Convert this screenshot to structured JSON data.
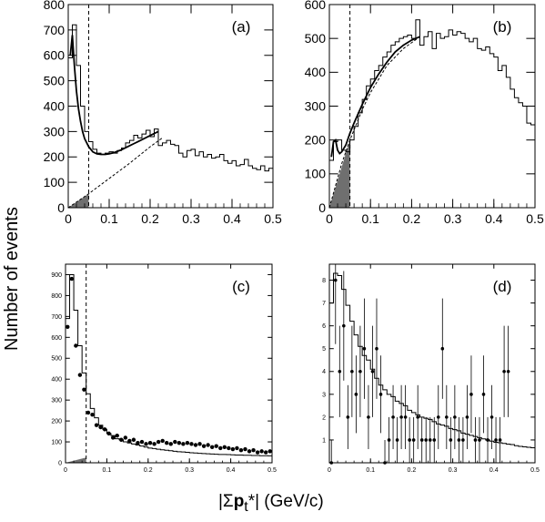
{
  "figure": {
    "ylabel": "Number of events",
    "xlabel_prefix": "|Σ",
    "xlabel_bold": "p",
    "xlabel_sub": "t",
    "xlabel_suffix": "*| (GeV/c)"
  },
  "chart_data": [
    {
      "panel": "(a)",
      "type": "histogram",
      "xlim": [
        0,
        0.5
      ],
      "ylim": [
        0,
        800
      ],
      "xticks": [
        "0",
        "0.1",
        "0.2",
        "0.3",
        "0.4",
        "0.5"
      ],
      "yticks": [
        "0",
        "100",
        "200",
        "300",
        "400",
        "500",
        "600",
        "700",
        "800"
      ],
      "cut_x": 0.05,
      "bin_width": 0.01,
      "histogram": [
        590,
        720,
        560,
        400,
        300,
        260,
        230,
        215,
        210,
        215,
        220,
        215,
        225,
        235,
        255,
        265,
        285,
        275,
        290,
        305,
        280,
        310,
        245,
        255,
        265,
        250,
        245,
        215,
        200,
        225,
        230,
        205,
        220,
        200,
        210,
        195,
        200,
        210,
        185,
        175,
        185,
        165,
        170,
        190,
        165,
        155,
        150,
        165,
        145,
        155
      ],
      "fit_curve": {
        "x": [
          0.005,
          0.01,
          0.015,
          0.02,
          0.025,
          0.03,
          0.035,
          0.04,
          0.05,
          0.06,
          0.07,
          0.08,
          0.09,
          0.1,
          0.11,
          0.12,
          0.13,
          0.14,
          0.15,
          0.16,
          0.17,
          0.18,
          0.19,
          0.2,
          0.21,
          0.22
        ],
        "y": [
          600,
          680,
          560,
          460,
          390,
          340,
          300,
          272,
          240,
          220,
          212,
          210,
          210,
          212,
          216,
          222,
          228,
          236,
          244,
          252,
          260,
          268,
          276,
          284,
          292,
          300
        ]
      },
      "background_curve": {
        "x": [
          0.0,
          0.05,
          0.1,
          0.15,
          0.2,
          0.23
        ],
        "y": [
          0,
          55,
          115,
          175,
          240,
          275
        ]
      },
      "shaded_region": {
        "x": [
          0.0,
          0.05
        ],
        "y_top": [
          0,
          55
        ]
      }
    },
    {
      "panel": "(b)",
      "type": "histogram",
      "xlim": [
        0,
        0.5
      ],
      "ylim": [
        0,
        600
      ],
      "xticks": [
        "0",
        "0.1",
        "0.2",
        "0.3",
        "0.4",
        "0.5"
      ],
      "yticks": [
        "0",
        "100",
        "200",
        "300",
        "400",
        "500",
        "600"
      ],
      "cut_x": 0.05,
      "bin_width": 0.01,
      "histogram": [
        140,
        195,
        200,
        170,
        165,
        200,
        240,
        280,
        320,
        360,
        380,
        405,
        420,
        445,
        460,
        480,
        490,
        500,
        505,
        510,
        500,
        555,
        480,
        505,
        520,
        470,
        515,
        500,
        505,
        525,
        510,
        520,
        515,
        500,
        490,
        500,
        470,
        465,
        475,
        455,
        445,
        405,
        420,
        385,
        350,
        325,
        310,
        300,
        250,
        245
      ],
      "fit_curve": {
        "x": [
          0.005,
          0.01,
          0.015,
          0.02,
          0.025,
          0.03,
          0.04,
          0.05,
          0.06,
          0.08,
          0.1,
          0.12,
          0.14,
          0.16,
          0.18,
          0.2,
          0.22
        ],
        "y": [
          150,
          195,
          200,
          170,
          160,
          165,
          185,
          220,
          250,
          305,
          355,
          395,
          430,
          460,
          480,
          495,
          505
        ]
      },
      "background_curve": {
        "x": [
          0.0,
          0.03,
          0.05,
          0.08,
          0.1,
          0.14,
          0.18,
          0.22
        ],
        "y": [
          0,
          130,
          200,
          290,
          340,
          420,
          470,
          505
        ]
      },
      "shaded_region": {
        "x": [
          0.0,
          0.05
        ],
        "y_top": [
          0,
          200
        ]
      }
    },
    {
      "panel": "(c)",
      "type": "histogram_with_points",
      "xlim": [
        0,
        0.5
      ],
      "ylim": [
        0,
        950
      ],
      "xticks": [
        "0",
        "0.1",
        "0.2",
        "0.3",
        "0.4",
        "0.5"
      ],
      "yticks": [
        "0",
        "100",
        "200",
        "300",
        "400",
        "500",
        "600",
        "700",
        "800",
        "900"
      ],
      "cut_x": 0.05,
      "bin_width": 0.01,
      "histogram": [
        690,
        900,
        730,
        560,
        430,
        330,
        260,
        215,
        180,
        160,
        140,
        130,
        115,
        110,
        100,
        95,
        90,
        85,
        80,
        75,
        70,
        68,
        65,
        62,
        60,
        58,
        55,
        53,
        52,
        50,
        48,
        47,
        45,
        44,
        43,
        42,
        41,
        40,
        40,
        39,
        38,
        37,
        37,
        36,
        36,
        35,
        35,
        34,
        34,
        33
      ],
      "points": {
        "x": [
          0.005,
          0.015,
          0.025,
          0.035,
          0.045,
          0.055,
          0.065,
          0.075,
          0.085,
          0.095,
          0.105,
          0.115,
          0.125,
          0.135,
          0.145,
          0.155,
          0.165,
          0.175,
          0.185,
          0.195,
          0.205,
          0.215,
          0.225,
          0.235,
          0.245,
          0.255,
          0.265,
          0.275,
          0.285,
          0.295,
          0.305,
          0.315,
          0.325,
          0.335,
          0.345,
          0.355,
          0.365,
          0.375,
          0.385,
          0.395,
          0.405,
          0.415,
          0.425,
          0.435,
          0.445,
          0.455,
          0.465,
          0.475,
          0.485,
          0.495
        ],
        "y": [
          650,
          880,
          560,
          420,
          350,
          240,
          230,
          180,
          170,
          160,
          140,
          120,
          130,
          110,
          120,
          105,
          110,
          95,
          100,
          90,
          95,
          90,
          100,
          105,
          95,
          90,
          100,
          95,
          90,
          95,
          90,
          85,
          90,
          80,
          85,
          75,
          80,
          70,
          75,
          70,
          65,
          70,
          60,
          65,
          55,
          60,
          50,
          55,
          50,
          55
        ]
      },
      "shaded_region": {
        "x": [
          0.0,
          0.05
        ],
        "y_top": [
          0,
          25
        ]
      }
    },
    {
      "panel": "(d)",
      "type": "histogram_with_errorbars",
      "xlim": [
        0,
        0.5
      ],
      "ylim": [
        0,
        8.7
      ],
      "xticks": [
        "0",
        "0.1",
        "0.2",
        "0.3",
        "0.4",
        "0.5"
      ],
      "yticks": [
        "1",
        "2",
        "3",
        "4",
        "5",
        "6",
        "7",
        "8"
      ],
      "bin_width": 0.01,
      "histogram": [
        7.0,
        8.3,
        8.2,
        7.6,
        6.9,
        6.2,
        5.6,
        5.1,
        4.7,
        4.5,
        4.1,
        3.7,
        3.4,
        3.2,
        3.0,
        2.9,
        2.7,
        2.6,
        2.5,
        2.3,
        2.2,
        2.1,
        2.0,
        1.95,
        1.9,
        1.8,
        1.7,
        1.65,
        1.6,
        1.5,
        1.45,
        1.4,
        1.3,
        1.25,
        1.2,
        1.15,
        1.1,
        1.05,
        1.0,
        0.95,
        0.9,
        0.88,
        0.85,
        0.82,
        0.8,
        0.75,
        0.72,
        0.7,
        0.68,
        0.66
      ],
      "points": {
        "x": [
          0.005,
          0.015,
          0.025,
          0.035,
          0.045,
          0.055,
          0.065,
          0.075,
          0.085,
          0.095,
          0.105,
          0.115,
          0.125,
          0.135,
          0.145,
          0.155,
          0.165,
          0.175,
          0.185,
          0.195,
          0.205,
          0.215,
          0.225,
          0.235,
          0.245,
          0.255,
          0.265,
          0.275,
          0.285,
          0.295,
          0.305,
          0.315,
          0.325,
          0.335,
          0.345,
          0.355,
          0.365,
          0.375,
          0.385,
          0.395,
          0.405,
          0.415,
          0.425,
          0.435
        ],
        "y": [
          0,
          8,
          4,
          6,
          2,
          4,
          3,
          4,
          5,
          2,
          4,
          5,
          3,
          0,
          1,
          2,
          1,
          2,
          2,
          1,
          1,
          2,
          1,
          1,
          1,
          1,
          2,
          5,
          2,
          1,
          2,
          1,
          1,
          2,
          3,
          1,
          1,
          3,
          1,
          2,
          1,
          1,
          4,
          4
        ],
        "err": [
          1.0,
          2.8,
          2.0,
          2.4,
          1.4,
          2.0,
          1.7,
          2.0,
          2.2,
          1.4,
          2.0,
          2.2,
          1.7,
          1.0,
          1.0,
          1.4,
          1.0,
          1.4,
          1.4,
          1.0,
          1.0,
          1.4,
          1.0,
          1.0,
          1.0,
          1.0,
          1.4,
          2.2,
          1.4,
          1.0,
          1.4,
          1.0,
          1.0,
          1.4,
          1.7,
          1.0,
          1.0,
          1.7,
          1.0,
          1.4,
          1.0,
          1.0,
          2.0,
          2.0
        ]
      }
    }
  ]
}
